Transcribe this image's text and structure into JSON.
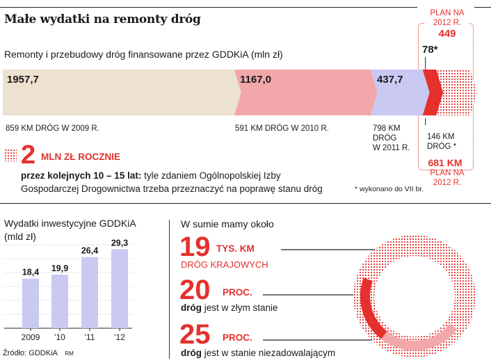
{
  "title": "Małe wydatki na remonty dróg",
  "subtitle": "Remonty i przebudowy dróg finansowane przez GDDKiA (mln zł)",
  "top_chart": {
    "type": "bar",
    "segments": [
      {
        "value_label": "1957,7",
        "value": 1957.7,
        "caption_lines": [
          "859 KM DRÓG W 2009 R."
        ],
        "color": "#ede1cf"
      },
      {
        "value_label": "1167,0",
        "value": 1167.0,
        "caption_lines": [
          "591 KM DRÓG W 2010 R."
        ],
        "color": "#f2a8aa"
      },
      {
        "value_label": "437,7",
        "value": 437.7,
        "caption_lines": [
          "798 KM",
          "DRÓG",
          "W 2011 R."
        ],
        "color": "#c9c9f2"
      },
      {
        "value_label": "78*",
        "value": 78,
        "caption_lines": [
          "146 KM",
          "DRÓG *"
        ],
        "color": "#e5302e"
      }
    ],
    "plan": {
      "top_label_lines": [
        "PLAN NA",
        "2012 R."
      ],
      "value_label": "449",
      "value": 449,
      "km_label": "681 KM",
      "bottom_label_lines": [
        "PLAN NA",
        "2012 R."
      ]
    },
    "footnote": "* wykonano do VII br."
  },
  "highlight": {
    "big_number": "2",
    "unit": "MLN ZŁ ROCZNIE",
    "text_bold": "przez kolejnych 10 – 15 lat:",
    "text_line1": " tyle zdaniem Ogólnopolskiej Izby",
    "text_line2": "Gospodarczej Drogownictwa trzeba przeznaczyć na poprawę stanu dróg"
  },
  "chart_data": {
    "type": "bar",
    "title": "Wydatki inwestycyjne GDDKiA",
    "ylabel": "(mld zł)",
    "categories": [
      "2009",
      "'10",
      "'11",
      "'12"
    ],
    "values": [
      18.4,
      19.9,
      26.4,
      29.3
    ],
    "value_labels": [
      "18,4",
      "19,9",
      "26,4",
      "29,3"
    ],
    "ylim": [
      0,
      32
    ],
    "bar_color": "#c9c9f2",
    "source": "Źródło: GDDKiA",
    "author": "RM"
  },
  "stats": {
    "heading": "W sumie mamy około",
    "items": [
      {
        "number": "19",
        "unit": "TYS. KM",
        "desc_red": "DRÓG KRAJOWYCH"
      },
      {
        "number": "20",
        "unit": "PROC.",
        "desc_bold": "dróg",
        "desc_rest": " jest w złym stanie"
      },
      {
        "number": "25",
        "unit": "PROC.",
        "desc_bold": "dróg",
        "desc_rest": " jest w stanie niezadowalającym"
      }
    ],
    "donut": {
      "bad_percent": 20,
      "unsatisfactory_percent": 25,
      "bad_color": "#e5302e",
      "unsat_color": "#f2a8aa"
    }
  },
  "colors": {
    "accent": "#e5302e"
  }
}
